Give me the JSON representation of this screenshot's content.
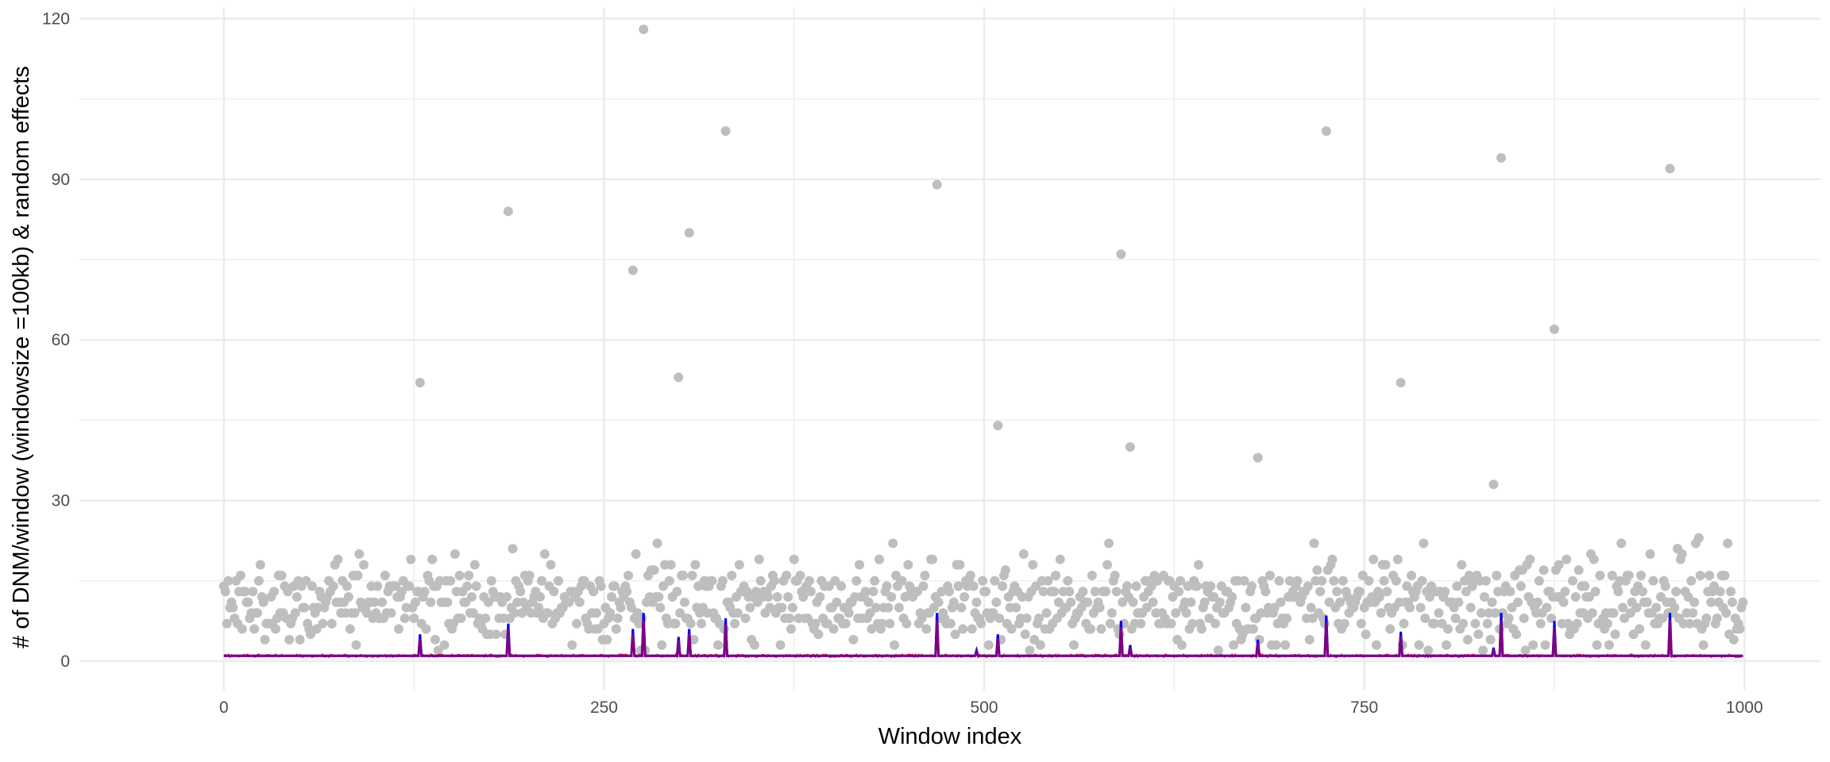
{
  "chart_data": {
    "type": "scatter",
    "title": "",
    "xlabel": "Window index",
    "ylabel": "# of DNM/window (windowsize =100kb) & random effects",
    "xlim": [
      -95,
      1050
    ],
    "ylim": [
      -5.5,
      122
    ],
    "x_ticks": [
      0,
      250,
      500,
      750,
      1000
    ],
    "x_tick_labels": [
      "0",
      "250",
      "500",
      "750",
      "1000"
    ],
    "y_ticks": [
      0,
      30,
      60,
      90,
      120
    ],
    "y_tick_labels": [
      "0",
      "30",
      "60",
      "90",
      "120"
    ],
    "grid": true,
    "legend": "none",
    "colors": {
      "points": "#bebebe",
      "blue_line": "#0000ff",
      "red_line": "#ff0000",
      "purple_line": "#800080",
      "grid": "#ebebeb"
    },
    "series": [
      {
        "style": "points",
        "color": "#bebebe",
        "outliers": [
          {
            "x": 129,
            "y": 52
          },
          {
            "x": 187,
            "y": 84
          },
          {
            "x": 269,
            "y": 73
          },
          {
            "x": 276,
            "y": 118
          },
          {
            "x": 299,
            "y": 53
          },
          {
            "x": 306,
            "y": 80
          },
          {
            "x": 330,
            "y": 99
          },
          {
            "x": 469,
            "y": 89
          },
          {
            "x": 509,
            "y": 44
          },
          {
            "x": 590,
            "y": 76
          },
          {
            "x": 596,
            "y": 40
          },
          {
            "x": 680,
            "y": 38
          },
          {
            "x": 725,
            "y": 99
          },
          {
            "x": 774,
            "y": 52
          },
          {
            "x": 835,
            "y": 33
          },
          {
            "x": 840,
            "y": 94
          },
          {
            "x": 875,
            "y": 62
          },
          {
            "x": 951,
            "y": 92
          }
        ],
        "bulk_points": {
          "n_windows": 1000,
          "typical_range": [
            2,
            20
          ],
          "most_common_range": [
            6,
            16
          ]
        }
      },
      {
        "style": "line",
        "color": "#0000ff",
        "baseline": 1,
        "peaks": [
          {
            "x": 129,
            "y": 5
          },
          {
            "x": 187,
            "y": 7
          },
          {
            "x": 269,
            "y": 6
          },
          {
            "x": 276,
            "y": 9
          },
          {
            "x": 299,
            "y": 4.5
          },
          {
            "x": 306,
            "y": 6
          },
          {
            "x": 330,
            "y": 8
          },
          {
            "x": 469,
            "y": 9
          },
          {
            "x": 495,
            "y": 2
          },
          {
            "x": 509,
            "y": 5
          },
          {
            "x": 590,
            "y": 7.5
          },
          {
            "x": 596,
            "y": 3
          },
          {
            "x": 680,
            "y": 4
          },
          {
            "x": 725,
            "y": 8.5
          },
          {
            "x": 774,
            "y": 5.5
          },
          {
            "x": 835,
            "y": 2.5
          },
          {
            "x": 840,
            "y": 9
          },
          {
            "x": 875,
            "y": 7.5
          },
          {
            "x": 951,
            "y": 9
          }
        ]
      },
      {
        "style": "line",
        "color": "#ff0000",
        "baseline": 1,
        "noise": 0.3
      },
      {
        "style": "line",
        "color": "#800080",
        "baseline": 1,
        "peak_scale": 0.85
      }
    ]
  }
}
